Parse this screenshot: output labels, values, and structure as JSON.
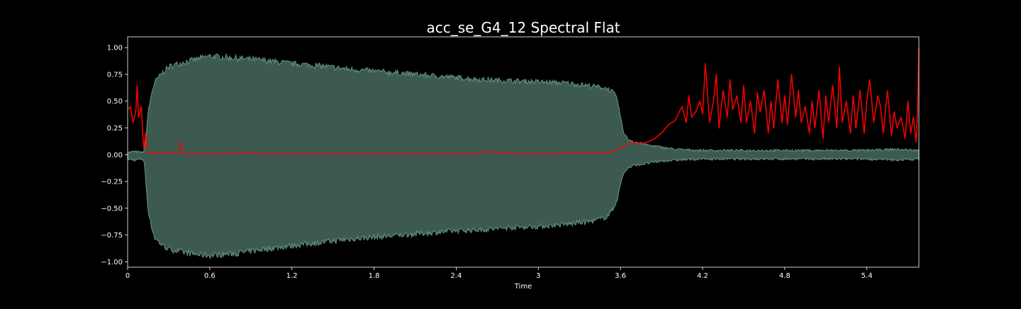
{
  "chart_data": {
    "type": "line",
    "title": "acc_se_G4_12 Spectral Flat",
    "xlabel": "Time",
    "ylabel": "",
    "xlim": [
      0,
      5.78
    ],
    "ylim": [
      -1.05,
      1.1
    ],
    "x_ticks": [
      {
        "value": 0,
        "label": "0"
      },
      {
        "value": 0.6,
        "label": "0.6"
      },
      {
        "value": 1.2,
        "label": "1.2"
      },
      {
        "value": 1.8,
        "label": "1.8"
      },
      {
        "value": 2.4,
        "label": "2.4"
      },
      {
        "value": 3.0,
        "label": "3"
      },
      {
        "value": 3.6,
        "label": "3.6"
      },
      {
        "value": 4.2,
        "label": "4.2"
      },
      {
        "value": 4.8,
        "label": "4.8"
      },
      {
        "value": 5.4,
        "label": "5.4"
      }
    ],
    "y_ticks": [
      {
        "value": 1.0,
        "label": "1.00"
      },
      {
        "value": 0.75,
        "label": "0.75"
      },
      {
        "value": 0.5,
        "label": "0.50"
      },
      {
        "value": 0.25,
        "label": "0.25"
      },
      {
        "value": 0.0,
        "label": "0.00"
      },
      {
        "value": -0.25,
        "label": "−0.25"
      },
      {
        "value": -0.5,
        "label": "−0.50"
      },
      {
        "value": -0.75,
        "label": "−0.75"
      },
      {
        "value": -1.0,
        "label": "−1.00"
      }
    ],
    "grid": false,
    "colors": {
      "background": "#000000",
      "text": "#ffffff",
      "waveform_fill": "#3c5a50",
      "waveform_edge": "#5e8a7e",
      "flatness_line": "#ff0000"
    },
    "series": [
      {
        "kind": "waveform_envelope",
        "x": [
          0,
          0.05,
          0.1,
          0.12,
          0.13,
          0.15,
          0.18,
          0.2,
          0.25,
          0.3,
          0.4,
          0.5,
          0.6,
          0.7,
          0.8,
          0.9,
          1.0,
          1.2,
          1.4,
          1.6,
          1.8,
          2.0,
          2.2,
          2.4,
          2.6,
          2.8,
          3.0,
          3.2,
          3.4,
          3.5,
          3.55,
          3.58,
          3.6,
          3.62,
          3.65,
          3.7,
          3.8,
          3.9,
          4.0,
          4.2,
          4.4,
          4.6,
          4.8,
          5.0,
          5.2,
          5.4,
          5.6,
          5.78
        ],
        "upper": [
          0.02,
          0.03,
          0.02,
          0.03,
          0.1,
          0.4,
          0.6,
          0.68,
          0.76,
          0.82,
          0.86,
          0.89,
          0.92,
          0.91,
          0.9,
          0.89,
          0.88,
          0.85,
          0.83,
          0.8,
          0.78,
          0.76,
          0.74,
          0.72,
          0.7,
          0.69,
          0.68,
          0.67,
          0.64,
          0.62,
          0.58,
          0.5,
          0.35,
          0.22,
          0.15,
          0.12,
          0.09,
          0.07,
          0.05,
          0.04,
          0.04,
          0.04,
          0.04,
          0.04,
          0.04,
          0.04,
          0.05,
          0.04
        ],
        "lower": [
          -0.04,
          -0.05,
          -0.04,
          -0.05,
          -0.2,
          -0.52,
          -0.7,
          -0.78,
          -0.84,
          -0.88,
          -0.91,
          -0.93,
          -0.94,
          -0.93,
          -0.92,
          -0.9,
          -0.88,
          -0.85,
          -0.82,
          -0.79,
          -0.77,
          -0.75,
          -0.73,
          -0.71,
          -0.7,
          -0.68,
          -0.67,
          -0.65,
          -0.62,
          -0.58,
          -0.5,
          -0.4,
          -0.28,
          -0.18,
          -0.13,
          -0.1,
          -0.08,
          -0.06,
          -0.05,
          -0.04,
          -0.04,
          -0.04,
          -0.04,
          -0.04,
          -0.04,
          -0.04,
          -0.05,
          -0.04
        ]
      },
      {
        "kind": "spectral_flatness",
        "x": [
          0,
          0.02,
          0.04,
          0.06,
          0.07,
          0.08,
          0.1,
          0.11,
          0.12,
          0.13,
          0.14,
          0.15,
          0.16,
          0.17,
          0.2,
          0.25,
          0.3,
          0.38,
          0.39,
          0.4,
          0.42,
          0.5,
          0.6,
          0.8,
          0.84,
          0.86,
          1.0,
          1.2,
          1.4,
          1.6,
          1.8,
          2.0,
          2.2,
          2.4,
          2.58,
          2.6,
          2.8,
          3.0,
          3.2,
          3.4,
          3.5,
          3.55,
          3.6,
          3.65,
          3.7,
          3.75,
          3.8,
          3.85,
          3.9,
          3.95,
          4.0,
          4.03,
          4.05,
          4.08,
          4.1,
          4.12,
          4.15,
          4.18,
          4.2,
          4.22,
          4.25,
          4.28,
          4.3,
          4.32,
          4.35,
          4.38,
          4.4,
          4.42,
          4.45,
          4.48,
          4.5,
          4.52,
          4.55,
          4.58,
          4.6,
          4.62,
          4.65,
          4.68,
          4.7,
          4.72,
          4.75,
          4.78,
          4.8,
          4.82,
          4.85,
          4.88,
          4.9,
          4.92,
          4.95,
          4.98,
          5.0,
          5.02,
          5.05,
          5.08,
          5.1,
          5.12,
          5.15,
          5.18,
          5.2,
          5.22,
          5.25,
          5.28,
          5.3,
          5.32,
          5.35,
          5.38,
          5.4,
          5.42,
          5.45,
          5.48,
          5.5,
          5.52,
          5.55,
          5.58,
          5.6,
          5.62,
          5.65,
          5.68,
          5.7,
          5.72,
          5.74,
          5.76,
          5.77,
          5.78
        ],
        "y": [
          0.42,
          0.45,
          0.3,
          0.4,
          0.65,
          0.35,
          0.45,
          0.2,
          0.05,
          0.2,
          0.1,
          0.03,
          0.02,
          0.02,
          0.015,
          0.015,
          0.015,
          0.02,
          0.12,
          0.03,
          0.01,
          0.01,
          0.01,
          0.01,
          0.03,
          0.01,
          0.01,
          0.01,
          0.01,
          0.01,
          0.01,
          0.01,
          0.01,
          0.01,
          0.01,
          0.03,
          0.01,
          0.01,
          0.01,
          0.02,
          0.02,
          0.03,
          0.06,
          0.1,
          0.11,
          0.1,
          0.12,
          0.15,
          0.2,
          0.28,
          0.32,
          0.4,
          0.45,
          0.3,
          0.55,
          0.35,
          0.4,
          0.5,
          0.38,
          0.85,
          0.3,
          0.5,
          0.75,
          0.25,
          0.6,
          0.35,
          0.7,
          0.42,
          0.55,
          0.3,
          0.65,
          0.3,
          0.5,
          0.2,
          0.58,
          0.4,
          0.6,
          0.2,
          0.5,
          0.25,
          0.7,
          0.3,
          0.55,
          0.28,
          0.75,
          0.35,
          0.6,
          0.3,
          0.45,
          0.2,
          0.5,
          0.25,
          0.6,
          0.15,
          0.55,
          0.3,
          0.65,
          0.25,
          0.82,
          0.3,
          0.5,
          0.2,
          0.55,
          0.25,
          0.6,
          0.2,
          0.5,
          0.7,
          0.3,
          0.55,
          0.45,
          0.2,
          0.6,
          0.18,
          0.4,
          0.25,
          0.35,
          0.15,
          0.5,
          0.2,
          0.35,
          0.12,
          0.4,
          1.0
        ]
      }
    ]
  }
}
